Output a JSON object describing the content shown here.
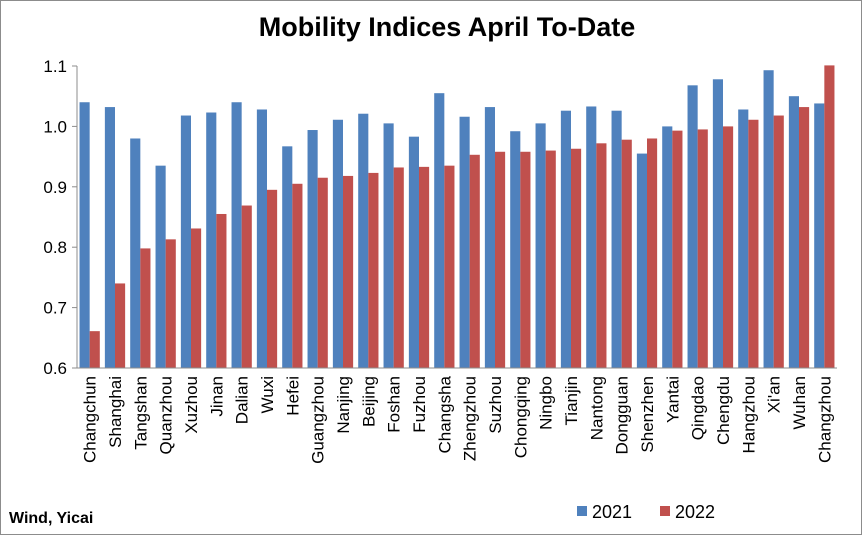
{
  "chart_data": {
    "type": "bar",
    "title": "Mobility Indices April To-Date",
    "xlabel": "",
    "ylabel": "",
    "ylim": [
      0.6,
      1.1
    ],
    "yticks": [
      "0.6",
      "0.7",
      "0.8",
      "0.9",
      "1.0",
      "1.1"
    ],
    "grid": false,
    "legend_position": "bottom-right",
    "categories": [
      "Changchun",
      "Shanghai",
      "Tangshan",
      "Quanzhou",
      "Xuzhou",
      "Jinan",
      "Dalian",
      "Wuxi",
      "Hefei",
      "Guangzhou",
      "Nanjing",
      "Beijing",
      "Foshan",
      "Fuzhou",
      "Changsha",
      "Zhengzhou",
      "Suzhou",
      "Chongqing",
      "Ningbo",
      "Tianjin",
      "Nantong",
      "Dongguan",
      "Shenzhen",
      "Yantai",
      "Qingdao",
      "Chengdu",
      "Hangzhou",
      "Xi'an",
      "Wuhan",
      "Changzhou"
    ],
    "series": [
      {
        "name": "2021",
        "color": "#4f81bd",
        "values": [
          1.04,
          1.032,
          0.98,
          0.935,
          1.018,
          1.023,
          1.04,
          1.028,
          0.967,
          0.994,
          1.011,
          1.021,
          1.005,
          0.983,
          1.055,
          1.016,
          1.032,
          0.992,
          1.005,
          1.026,
          1.033,
          1.026,
          0.955,
          1.0,
          1.068,
          1.078,
          1.028,
          1.093,
          1.05,
          1.038
        ]
      },
      {
        "name": "2022",
        "color": "#c0504d",
        "values": [
          0.661,
          0.74,
          0.798,
          0.813,
          0.831,
          0.855,
          0.869,
          0.895,
          0.905,
          0.915,
          0.918,
          0.923,
          0.932,
          0.933,
          0.935,
          0.953,
          0.958,
          0.958,
          0.96,
          0.963,
          0.972,
          0.978,
          0.98,
          0.993,
          0.995,
          1.0,
          1.011,
          1.018,
          1.032,
          1.101
        ]
      }
    ],
    "source": "Wind, Yicai"
  }
}
